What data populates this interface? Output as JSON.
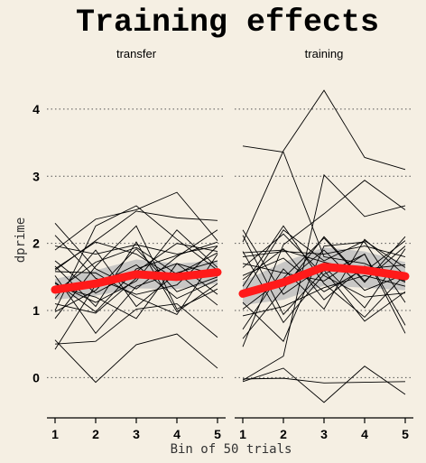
{
  "chart_data": {
    "type": "line",
    "title": "Training effects",
    "xlabel": "Bin of 50 trials",
    "ylabel": "dprime",
    "x": [
      1,
      2,
      3,
      4,
      5
    ],
    "ylim": [
      -0.6,
      4.55
    ],
    "yticks": [
      0,
      1,
      2,
      3,
      4
    ],
    "grid": "dotted-horizontal",
    "colors": {
      "mean_line": "#ff1a1a",
      "band": "#bfbfbf",
      "individual": "#000000",
      "background": "#f5efe3"
    },
    "panels": [
      {
        "label": "transfer",
        "mean": [
          1.31,
          1.4,
          1.54,
          1.5,
          1.57
        ],
        "band_low": [
          1.16,
          1.22,
          1.33,
          1.32,
          1.4
        ],
        "band_high": [
          1.47,
          1.6,
          1.76,
          1.7,
          1.74
        ],
        "individual": [
          [
            0.5,
            0.54,
            1.02,
            1.1,
            0.6
          ],
          [
            1.1,
            0.96,
            1.48,
            1.7,
            1.24
          ],
          [
            1.28,
            1.72,
            1.94,
            1.54,
            1.86
          ],
          [
            1.62,
            2.02,
            1.84,
            1.46,
            1.6
          ],
          [
            1.74,
            1.26,
            1.58,
            2.0,
            1.88
          ],
          [
            2.12,
            1.48,
            1.24,
            1.38,
            1.96
          ],
          [
            0.88,
            1.66,
            2.26,
            1.02,
            1.32
          ],
          [
            1.42,
            0.98,
            1.62,
            1.82,
            2.02
          ],
          [
            0.98,
            1.3,
            1.92,
            1.28,
            1.5
          ],
          [
            1.9,
            2.36,
            2.5,
            2.76,
            2.04
          ],
          [
            1.52,
            0.66,
            1.36,
            1.56,
            1.74
          ],
          [
            1.6,
            2.04,
            2.48,
            2.38,
            2.34
          ],
          [
            0.56,
            -0.07,
            0.49,
            0.65,
            0.14
          ],
          [
            1.18,
            1.9,
            1.06,
            1.56,
            1.08
          ],
          [
            2.3,
            1.62,
            1.32,
            1.8,
            2.2
          ],
          [
            1.36,
            1.2,
            0.88,
            1.7,
            1.52
          ],
          [
            1.0,
            2.26,
            2.56,
            2.06,
            1.6
          ],
          [
            1.66,
            1.06,
            2.02,
            0.98,
            1.4
          ],
          [
            1.58,
            1.56,
            1.2,
            0.94,
            1.84
          ],
          [
            0.42,
            1.38,
            1.68,
            1.18,
            1.46
          ],
          [
            1.96,
            1.84,
            1.98,
            1.84,
            1.96
          ],
          [
            1.4,
            1.12,
            1.44,
            2.2,
            1.64
          ]
        ]
      },
      {
        "label": "training",
        "mean": [
          1.25,
          1.42,
          1.65,
          1.6,
          1.51
        ],
        "band_low": [
          1.08,
          1.16,
          1.37,
          1.34,
          1.3
        ],
        "band_high": [
          1.43,
          1.72,
          1.94,
          1.88,
          1.72
        ],
        "individual": [
          [
            3.45,
            3.36,
            1.8,
            1.7,
            1.42
          ],
          [
            2.02,
            3.38,
            4.28,
            3.28,
            3.1
          ],
          [
            -0.04,
            0.32,
            3.02,
            2.4,
            2.56
          ],
          [
            0.46,
            1.98,
            2.44,
            2.94,
            2.5
          ],
          [
            1.88,
            0.82,
            1.54,
            1.84,
            0.78
          ],
          [
            -0.06,
            0.14,
            -0.37,
            0.17,
            -0.25
          ],
          [
            1.36,
            2.26,
            1.4,
            0.9,
            1.54
          ],
          [
            0.72,
            1.62,
            1.02,
            2.06,
            1.52
          ],
          [
            2.2,
            1.24,
            1.66,
            1.04,
            1.92
          ],
          [
            1.12,
            0.54,
            1.96,
            2.02,
            1.12
          ],
          [
            1.52,
            1.78,
            1.28,
            1.62,
            1.68
          ],
          [
            1.64,
            2.14,
            1.52,
            1.2,
            1.26
          ],
          [
            1.02,
            1.48,
            2.08,
            1.42,
            2.1
          ],
          [
            1.8,
            1.88,
            1.84,
            1.96,
            1.8
          ],
          [
            0.92,
            1.06,
            1.34,
            1.52,
            1.36
          ],
          [
            -0.02,
            -0.01,
            -0.08,
            -0.07,
            -0.06
          ],
          [
            1.46,
            1.92,
            1.16,
            1.66,
            1.44
          ],
          [
            2.12,
            0.94,
            1.6,
            0.84,
            1.28
          ],
          [
            1.24,
            2.2,
            1.74,
            2.04,
            1.64
          ],
          [
            0.58,
            1.32,
            2.1,
            1.44,
            1.96
          ],
          [
            1.7,
            1.56,
            1.44,
            1.84,
            0.66
          ],
          [
            1.86,
            1.9,
            1.72,
            1.58,
            2.04
          ],
          [
            1.3,
            1.4,
            1.9,
            1.3,
            1.54
          ]
        ]
      }
    ]
  }
}
